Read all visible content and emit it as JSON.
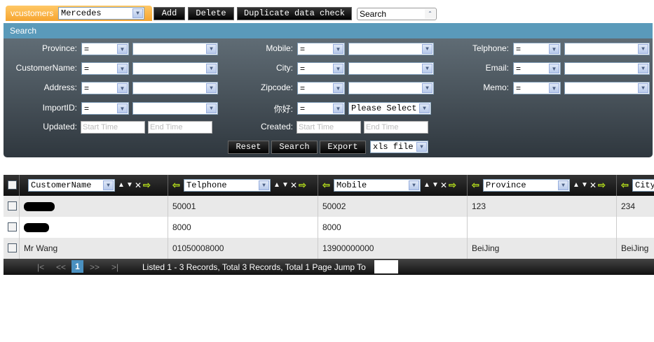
{
  "toolbar": {
    "module_tab": "vcustomers",
    "module_select": "Mercedes",
    "add": "Add",
    "delete": "Delete",
    "duplicate": "Duplicate data check",
    "mode_select": "Search"
  },
  "search": {
    "title": "Search",
    "fields": [
      {
        "label": "Province:",
        "op": "="
      },
      {
        "label": "Mobile:",
        "op": "="
      },
      {
        "label": "Telphone:",
        "op": "="
      },
      {
        "label": "CustomerName:",
        "op": "="
      },
      {
        "label": "City:",
        "op": "="
      },
      {
        "label": "Email:",
        "op": "="
      },
      {
        "label": "Address:",
        "op": "="
      },
      {
        "label": "Zipcode:",
        "op": "="
      },
      {
        "label": "Memo:",
        "op": "="
      },
      {
        "label": "ImportID:",
        "op": "="
      },
      {
        "label": "你好:",
        "op": "=",
        "value": "Please Select"
      }
    ],
    "updated_label": "Updated:",
    "created_label": "Created:",
    "start_placeholder": "Start Time",
    "end_placeholder": "End Time",
    "reset": "Reset",
    "search": "Search",
    "export": "Export",
    "export_format": "xls file"
  },
  "table": {
    "columns": [
      "CustomerName",
      "Telphone",
      "Mobile",
      "Province",
      "City"
    ],
    "rows": [
      [
        "",
        "50001",
        "50002",
        "123",
        "234"
      ],
      [
        "",
        "8000",
        "8000",
        "",
        ""
      ],
      [
        "Mr Wang",
        "01050008000",
        "13900000000",
        "BeiJing",
        "BeiJing"
      ]
    ]
  },
  "pager": {
    "first": "|<",
    "prev": "<<",
    "current": "1",
    "next": ">>",
    "last": ">|",
    "summary": "Listed 1 - 3 Records, Total 3 Records, Total 1 Page Jump To",
    "jump_value": ""
  }
}
